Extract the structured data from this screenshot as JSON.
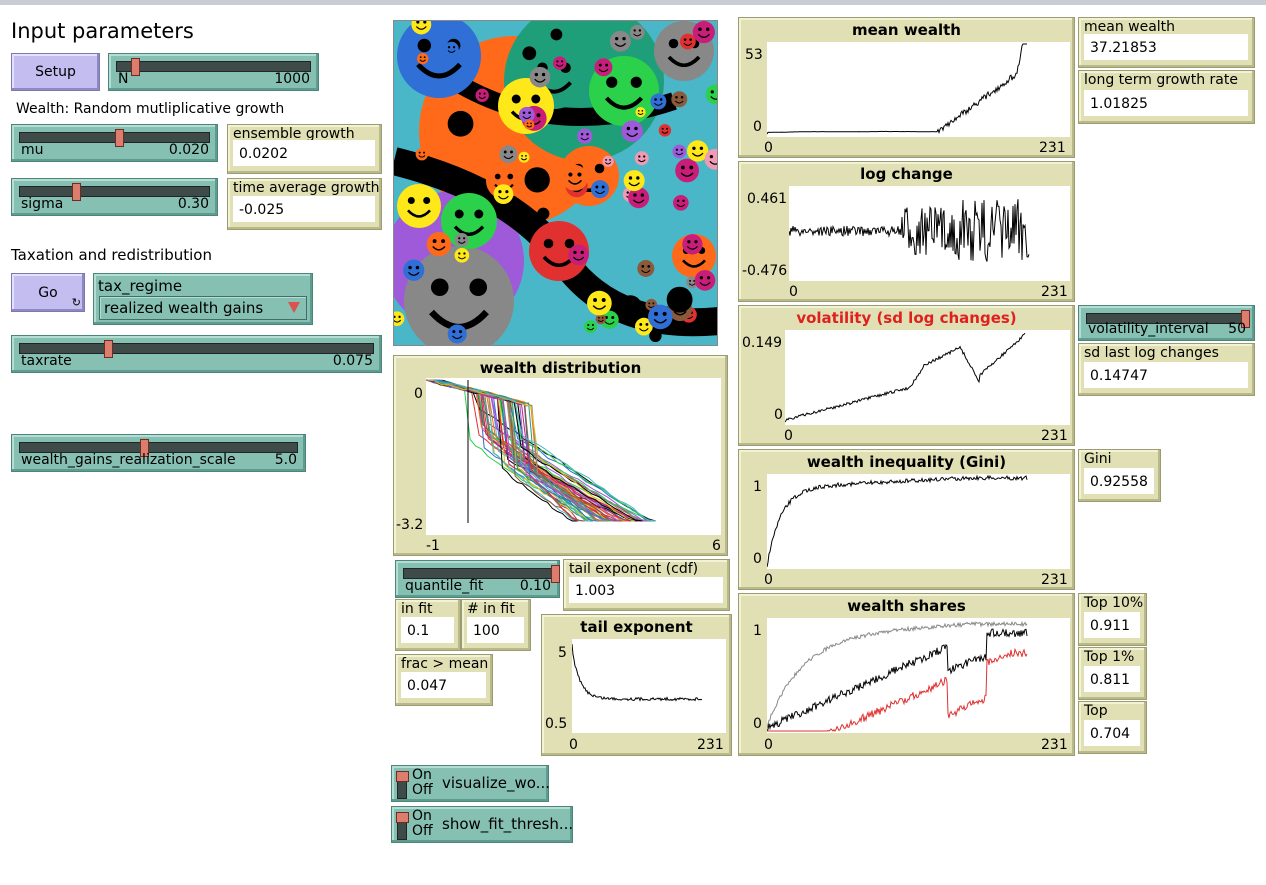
{
  "title": "Input parameters",
  "setup_button": "Setup",
  "go_button": "Go",
  "section_wealth": "Wealth: Random mutliplicative growth",
  "section_tax": "Taxation and redistribution",
  "sliders": {
    "N": {
      "label": "N",
      "value": "1000",
      "min": 0,
      "max": 10000,
      "pos": 0.1
    },
    "mu": {
      "label": "mu",
      "value": "0.020",
      "pos": 0.52
    },
    "sigma": {
      "label": "sigma",
      "value": "0.30",
      "pos": 0.3
    },
    "taxrate": {
      "label": "taxrate",
      "value": "0.075",
      "pos": 0.25
    },
    "wgrs": {
      "label": "wealth_gains_realization_scale",
      "value": "5.0",
      "pos": 0.44
    },
    "quantile_fit": {
      "label": "quantile_fit",
      "value": "0.10",
      "pos": 1.0
    },
    "volatility_interval": {
      "label": "volatility_interval",
      "value": "50",
      "pos": 1.0
    }
  },
  "chooser": {
    "label": "tax_regime",
    "value": "realized wealth gains"
  },
  "monitors": {
    "ensemble_growth": {
      "label": "ensemble growth",
      "value": "0.0202"
    },
    "time_average_growth": {
      "label": "time average growth",
      "value": "-0.025"
    },
    "tail_exponent_cdf": {
      "label": "tail exponent (cdf)",
      "value": "1.003"
    },
    "in_fit": {
      "label": "in fit",
      "value": "0.1"
    },
    "num_in_fit": {
      "label": "# in fit",
      "value": "100"
    },
    "frac_mean": {
      "label": "frac > mean",
      "value": "0.047"
    },
    "mean_wealth": {
      "label": "mean wealth",
      "value": "37.21853"
    },
    "long_term_growth": {
      "label": "long term growth rate",
      "value": "1.01825"
    },
    "sd_last_log": {
      "label": "sd last log changes",
      "value": "0.14747"
    },
    "gini": {
      "label": "Gini",
      "value": "0.92558"
    },
    "top10": {
      "label": "Top 10%",
      "value": "0.911"
    },
    "top1": {
      "label": "Top 1%",
      "value": "0.811"
    },
    "top": {
      "label": "Top",
      "value": "0.704"
    }
  },
  "switches": {
    "visualize": {
      "label": "visualize_wo...",
      "on": "On",
      "off": "Off"
    },
    "show_fit": {
      "label": "show_fit_thresh...",
      "on": "On",
      "off": "Off"
    }
  },
  "plots": {
    "wealth_distribution": {
      "title": "wealth distribution",
      "ymax": "0",
      "ymin": "-3.2",
      "xmin": "-1",
      "xmax": "6"
    },
    "tail_exponent": {
      "title": "tail exponent",
      "ymax": "5",
      "ymin": "0.5",
      "xmin": "0",
      "xmax": "231"
    },
    "mean_wealth": {
      "title": "mean wealth",
      "ymax": "53",
      "ymin": "0",
      "xmin": "0",
      "xmax": "231"
    },
    "log_change": {
      "title": "log change",
      "ymax": "0.461",
      "ymin": "-0.476",
      "xmin": "0",
      "xmax": "231"
    },
    "volatility": {
      "title": "volatility (sd log changes)",
      "ymax": "0.149",
      "ymin": "0",
      "xmin": "0",
      "xmax": "231",
      "title_color": "#e02020"
    },
    "gini": {
      "title": "wealth inequality (Gini)",
      "ymax": "1",
      "ymin": "0",
      "xmin": "0",
      "xmax": "231"
    },
    "shares": {
      "title": "wealth shares",
      "ymax": "1",
      "ymin": "0",
      "xmin": "0",
      "xmax": "231"
    }
  },
  "colors": {
    "button": "#c3bdf0",
    "widget": "#86c0b3",
    "monitor": "#e0e0b4",
    "world_bg": "#4ab7c9"
  }
}
